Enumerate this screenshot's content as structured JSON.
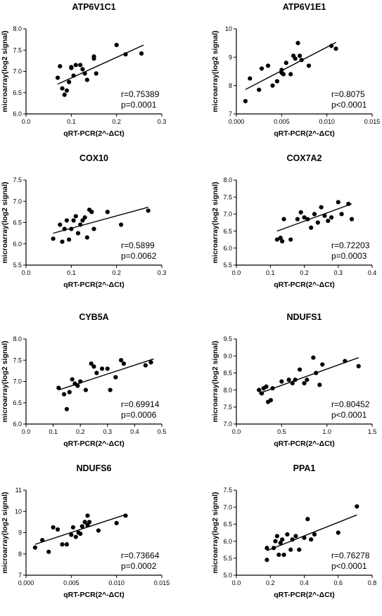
{
  "chart_data": [
    {
      "type": "scatter",
      "title": "ATP6V1C1",
      "xlabel": "qRT-PCR(2^-ΔCt)",
      "ylabel": "microarray(log2 signal)",
      "xlim": [
        0,
        0.3
      ],
      "ylim": [
        6.0,
        8.0
      ],
      "xticks": [
        "0.0",
        "0.1",
        "0.2",
        "0.3"
      ],
      "yticks": [
        "6.0",
        "6.5",
        "7.0",
        "7.5",
        "8.0"
      ],
      "x": [
        0.07,
        0.075,
        0.08,
        0.085,
        0.09,
        0.095,
        0.1,
        0.1,
        0.105,
        0.11,
        0.12,
        0.125,
        0.13,
        0.135,
        0.15,
        0.15,
        0.155,
        0.2,
        0.22,
        0.255
      ],
      "y": [
        6.85,
        7.12,
        6.6,
        6.45,
        6.55,
        6.75,
        7.08,
        7.1,
        6.9,
        7.15,
        7.15,
        7.05,
        6.95,
        6.8,
        7.35,
        7.3,
        6.95,
        7.62,
        7.4,
        7.42
      ],
      "fit_line": {
        "x": [
          0.07,
          0.26
        ],
        "y": [
          6.7,
          7.62
        ]
      },
      "r": "r=0.75389",
      "p": "p=0.0001",
      "legend": "none"
    },
    {
      "type": "scatter",
      "title": "ATP6V1E1",
      "xlabel": "qRT-PCR(2^-ΔCt)",
      "ylabel": "microarray(log2 signal)",
      "xlim": [
        0,
        0.015
      ],
      "ylim": [
        7,
        10
      ],
      "xticks": [
        "0.000",
        "0.005",
        "0.010",
        "0.015"
      ],
      "yticks": [
        "7",
        "8",
        "9",
        "10"
      ],
      "x": [
        0.001,
        0.0015,
        0.0025,
        0.0028,
        0.0035,
        0.004,
        0.0045,
        0.005,
        0.005,
        0.0052,
        0.0055,
        0.006,
        0.0063,
        0.0065,
        0.007,
        0.0068,
        0.0072,
        0.008,
        0.0105,
        0.011
      ],
      "y": [
        7.45,
        8.25,
        7.85,
        8.6,
        8.7,
        8.0,
        8.15,
        8.45,
        8.55,
        8.4,
        8.8,
        8.4,
        9.05,
        8.95,
        9.05,
        9.5,
        8.9,
        8.7,
        9.4,
        9.3
      ],
      "fit_line": {
        "x": [
          0.001,
          0.011
        ],
        "y": [
          7.86,
          9.52
        ]
      },
      "r": "r=0.8075",
      "p": "p<0.0001",
      "legend": "none"
    },
    {
      "type": "scatter",
      "title": "COX10",
      "xlabel": "qRT-PCR(2^-ΔCt)",
      "ylabel": "microarray(log2 signal)",
      "xlim": [
        0,
        0.3
      ],
      "ylim": [
        5.5,
        7.5
      ],
      "xticks": [
        "0.0",
        "0.1",
        "0.2",
        "0.3"
      ],
      "yticks": [
        "5.5",
        "6.0",
        "6.5",
        "7.0",
        "7.5"
      ],
      "x": [
        0.06,
        0.075,
        0.08,
        0.085,
        0.09,
        0.095,
        0.1,
        0.105,
        0.11,
        0.115,
        0.12,
        0.125,
        0.13,
        0.135,
        0.14,
        0.145,
        0.15,
        0.18,
        0.21,
        0.27
      ],
      "y": [
        6.12,
        6.45,
        6.05,
        6.35,
        6.55,
        6.1,
        6.35,
        6.55,
        6.65,
        6.25,
        6.45,
        6.55,
        6.62,
        6.15,
        6.8,
        6.75,
        6.35,
        6.75,
        6.45,
        6.78
      ],
      "fit_line": {
        "x": [
          0.06,
          0.27
        ],
        "y": [
          6.25,
          6.86
        ]
      },
      "r": "r=0.5899",
      "p": "p=0.0062",
      "legend": "none"
    },
    {
      "type": "scatter",
      "title": "COX7A2",
      "xlabel": "qRT-PCR(2^-ΔCt)",
      "ylabel": "microarray(log2 signal)",
      "xlim": [
        0,
        0.4
      ],
      "ylim": [
        5.5,
        8.0
      ],
      "xticks": [
        "0.0",
        "0.1",
        "0.2",
        "0.3",
        "0.4"
      ],
      "yticks": [
        "5.5",
        "6.0",
        "6.5",
        "7.0",
        "7.5",
        "8.0"
      ],
      "x": [
        0.12,
        0.13,
        0.135,
        0.14,
        0.16,
        0.18,
        0.19,
        0.2,
        0.21,
        0.22,
        0.23,
        0.24,
        0.25,
        0.26,
        0.27,
        0.28,
        0.3,
        0.31,
        0.33,
        0.34
      ],
      "y": [
        6.25,
        6.3,
        6.2,
        6.85,
        6.25,
        6.85,
        7.05,
        6.9,
        6.85,
        6.6,
        7.0,
        6.75,
        7.2,
        6.95,
        6.8,
        6.9,
        7.35,
        7.0,
        7.3,
        6.85
      ],
      "fit_line": {
        "x": [
          0.12,
          0.34
        ],
        "y": [
          6.5,
          7.3
        ]
      },
      "r": "r=0.72203",
      "p": "p=0.0003",
      "legend": "none"
    },
    {
      "type": "scatter",
      "title": "CYB5A",
      "xlabel": "qRT-PCR(2^-ΔCt)",
      "ylabel": "microarray(log2 signal)",
      "xlim": [
        0,
        0.5
      ],
      "ylim": [
        6.0,
        8.0
      ],
      "xticks": [
        "0.0",
        "0.1",
        "0.2",
        "0.3",
        "0.4",
        "0.5"
      ],
      "yticks": [
        "6.0",
        "6.5",
        "7.0",
        "7.5",
        "8.0"
      ],
      "x": [
        0.12,
        0.14,
        0.15,
        0.16,
        0.17,
        0.18,
        0.19,
        0.2,
        0.22,
        0.24,
        0.25,
        0.26,
        0.28,
        0.3,
        0.31,
        0.33,
        0.35,
        0.36,
        0.44,
        0.46
      ],
      "y": [
        6.85,
        6.7,
        6.35,
        6.75,
        7.05,
        6.95,
        6.9,
        7.0,
        6.8,
        7.42,
        7.35,
        7.2,
        7.3,
        7.3,
        6.8,
        7.1,
        7.5,
        7.42,
        7.38,
        7.45
      ],
      "fit_line": {
        "x": [
          0.12,
          0.47
        ],
        "y": [
          6.8,
          7.53
        ]
      },
      "r": "r=0.69914",
      "p": "p=0.0006",
      "legend": "none"
    },
    {
      "type": "scatter",
      "title": "NDUFS1",
      "xlabel": "qRT-PCR(2^-ΔCt)",
      "ylabel": "microarray(log2 signal)",
      "xlim": [
        0,
        1.5
      ],
      "ylim": [
        7.0,
        9.5
      ],
      "xticks": [
        "0.0",
        "0.5",
        "1.0",
        "1.5"
      ],
      "yticks": [
        "7.0",
        "7.5",
        "8.0",
        "8.5",
        "9.0",
        "9.5"
      ],
      "x": [
        0.25,
        0.28,
        0.3,
        0.33,
        0.35,
        0.38,
        0.4,
        0.5,
        0.58,
        0.62,
        0.65,
        0.7,
        0.75,
        0.78,
        0.85,
        0.88,
        0.92,
        0.95,
        1.2,
        1.35
      ],
      "y": [
        8.0,
        7.9,
        8.05,
        8.1,
        7.65,
        7.7,
        8.05,
        8.25,
        8.3,
        8.2,
        8.3,
        8.6,
        8.2,
        8.3,
        8.95,
        8.5,
        8.15,
        8.75,
        8.85,
        8.7
      ],
      "fit_line": {
        "x": [
          0.25,
          1.35
        ],
        "y": [
          7.9,
          8.95
        ]
      },
      "r": "r=0.80452",
      "p": "p<0.0001",
      "legend": "none"
    },
    {
      "type": "scatter",
      "title": "NDUFS6",
      "xlabel": "qRT-PCR(2^-ΔCt)",
      "ylabel": "microarray(log2 signal)",
      "xlim": [
        0,
        0.015
      ],
      "ylim": [
        7,
        11
      ],
      "xticks": [
        "0.000",
        "0.005",
        "0.010",
        "0.015"
      ],
      "yticks": [
        "7",
        "8",
        "9",
        "10",
        "11"
      ],
      "x": [
        0.001,
        0.0018,
        0.0025,
        0.003,
        0.0035,
        0.004,
        0.0045,
        0.005,
        0.0052,
        0.0055,
        0.0058,
        0.006,
        0.0062,
        0.0065,
        0.0068,
        0.0068,
        0.007,
        0.008,
        0.01,
        0.011
      ],
      "y": [
        8.3,
        8.65,
        8.1,
        9.25,
        9.15,
        8.45,
        8.45,
        8.9,
        9.25,
        8.8,
        9.0,
        8.95,
        9.3,
        9.5,
        9.35,
        9.8,
        9.5,
        9.1,
        9.45,
        9.8
      ],
      "fit_line": {
        "x": [
          0.001,
          0.011
        ],
        "y": [
          8.45,
          9.85
        ]
      },
      "r": "r=0.73664",
      "p": "p=0.0002",
      "legend": "none"
    },
    {
      "type": "scatter",
      "title": "PPA1",
      "xlabel": "qRT-PCR(2^-ΔCt)",
      "ylabel": "microarray(log2 signal)",
      "xlim": [
        0,
        0.8
      ],
      "ylim": [
        5.0,
        7.5
      ],
      "xticks": [
        "0.0",
        "0.2",
        "0.4",
        "0.6",
        "0.8"
      ],
      "yticks": [
        "5.0",
        "5.5",
        "6.0",
        "6.5",
        "7.0",
        "7.5"
      ],
      "x": [
        0.18,
        0.18,
        0.22,
        0.23,
        0.24,
        0.25,
        0.26,
        0.27,
        0.28,
        0.3,
        0.32,
        0.33,
        0.35,
        0.37,
        0.4,
        0.42,
        0.44,
        0.46,
        0.6,
        0.71
      ],
      "y": [
        5.45,
        5.8,
        5.8,
        6.0,
        6.15,
        5.6,
        5.95,
        6.05,
        5.6,
        6.2,
        5.75,
        6.05,
        6.15,
        5.75,
        6.1,
        6.65,
        6.05,
        6.2,
        6.25,
        7.02
      ],
      "fit_line": {
        "x": [
          0.18,
          0.71
        ],
        "y": [
          5.72,
          6.77
        ]
      },
      "r": "r=0.76278",
      "p": "p<0.0001",
      "legend": "none"
    }
  ]
}
